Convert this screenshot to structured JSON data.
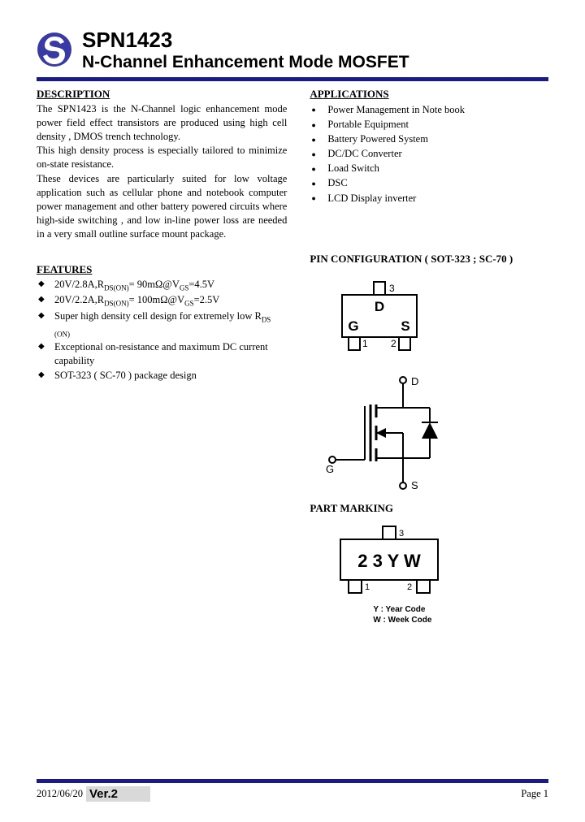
{
  "colors": {
    "accent": "#1a1a8a",
    "logo_bg": "#3a3aa5",
    "text": "#000000",
    "grey_bg": "#d9d9d9"
  },
  "header": {
    "part_number": "SPN1423",
    "subtitle": "N-Channel Enhancement Mode MOSFET"
  },
  "description": {
    "title": "DESCRIPTION",
    "paragraphs": [
      "The SPN1423 is the N-Channel logic enhancement mode power field effect transistors are produced using high cell density , DMOS trench technology.",
      "This high density process is especially tailored to minimize on-state resistance.",
      "These devices are particularly suited for low voltage application such as cellular phone and notebook computer power management and other battery powered circuits where high-side switching , and low in-line power loss are needed in a very small outline surface mount package."
    ]
  },
  "applications": {
    "title": "APPLICATIONS",
    "items": [
      "Power Management in Note book",
      "Portable Equipment",
      "Battery Powered System",
      "DC/DC Converter",
      "Load Switch",
      "DSC",
      "LCD Display inverter"
    ]
  },
  "features": {
    "title": "FEATURES",
    "items": [
      "20V/2.8A,R<span class=\"sub\">DS(ON)</span>= 90mΩ@V<span class=\"sub\">GS</span>=4.5V",
      "20V/2.2A,R<span class=\"sub\">DS(ON)</span>= 100mΩ@V<span class=\"sub\">GS</span>=2.5V",
      "Super high density cell design for extremely low R<span class=\"sub\">DS (ON)</span>",
      "Exceptional on-resistance and maximum DC current capability",
      "SOT-323 ( SC-70 ) package design"
    ]
  },
  "pin_config": {
    "title": "PIN CONFIGURATION ( SOT-323 ; SC-70 )",
    "pins": {
      "p1": "1",
      "p2": "2",
      "p3": "3",
      "g": "G",
      "s": "S",
      "d": "D"
    }
  },
  "symbol": {
    "labels": {
      "d": "D",
      "g": "G",
      "s": "S"
    }
  },
  "part_marking": {
    "title": "PART MARKING",
    "code": "2 3 Y W",
    "legend_y": "Y : Year Code",
    "legend_w": "W : Week Code",
    "pins": {
      "p1": "1",
      "p2": "2",
      "p3": "3"
    }
  },
  "footer": {
    "date": "2012/06/20",
    "version": "Ver.2",
    "page": "Page 1"
  }
}
